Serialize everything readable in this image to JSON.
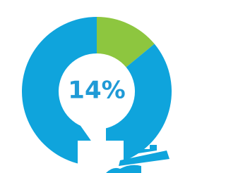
{
  "chart_data": {
    "type": "donut",
    "series": [
      {
        "values": [
          14,
          86
        ],
        "value_labels": [
          "14%",
          null
        ],
        "colors": [
          "#8dc63f",
          "#0fa4dc"
        ]
      }
    ]
  }
}
